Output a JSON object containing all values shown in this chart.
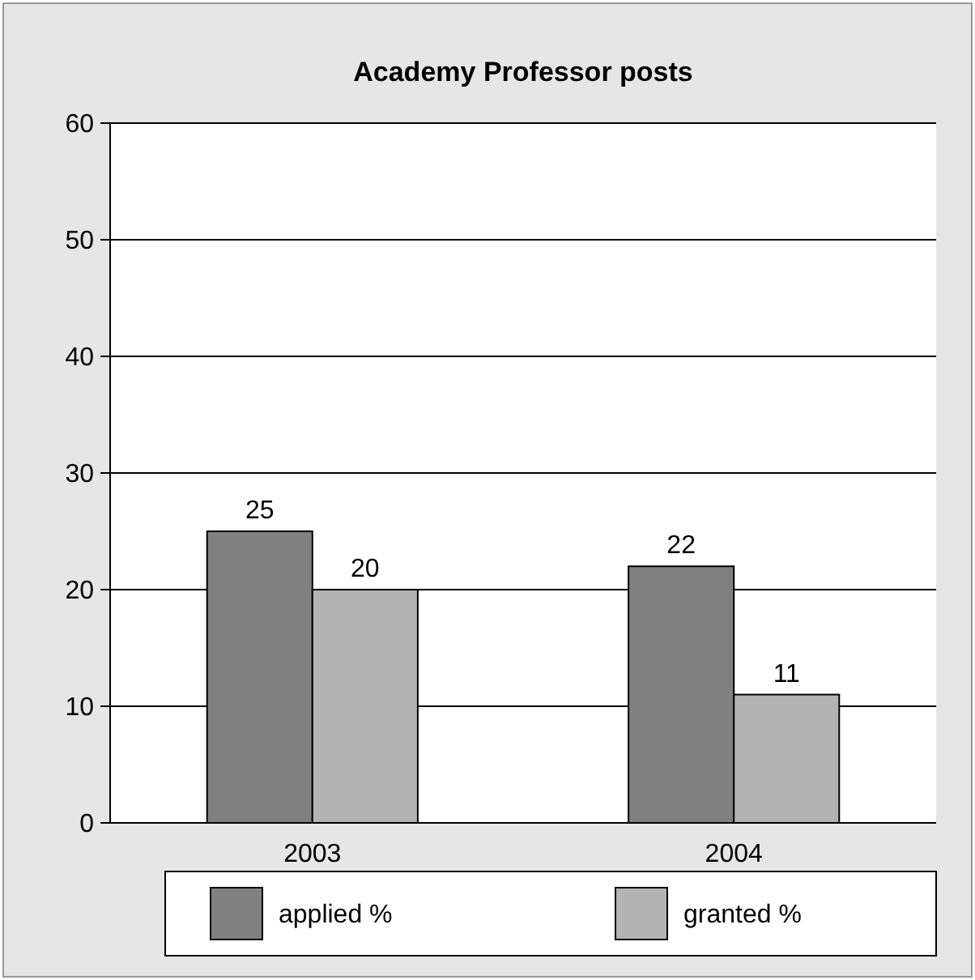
{
  "chart_data": {
    "type": "bar",
    "title": "Academy Professor posts",
    "categories": [
      "2003",
      "2004"
    ],
    "series": [
      {
        "name": "applied %",
        "color": "#808080",
        "values": [
          25,
          22
        ]
      },
      {
        "name": "granted %",
        "color": "#b3b3b3",
        "values": [
          20,
          11
        ]
      }
    ],
    "ylim": [
      0,
      60
    ],
    "yticks": [
      0,
      10,
      20,
      30,
      40,
      50,
      60
    ],
    "grid": "y",
    "data_labels": true,
    "legend": "bottom"
  }
}
